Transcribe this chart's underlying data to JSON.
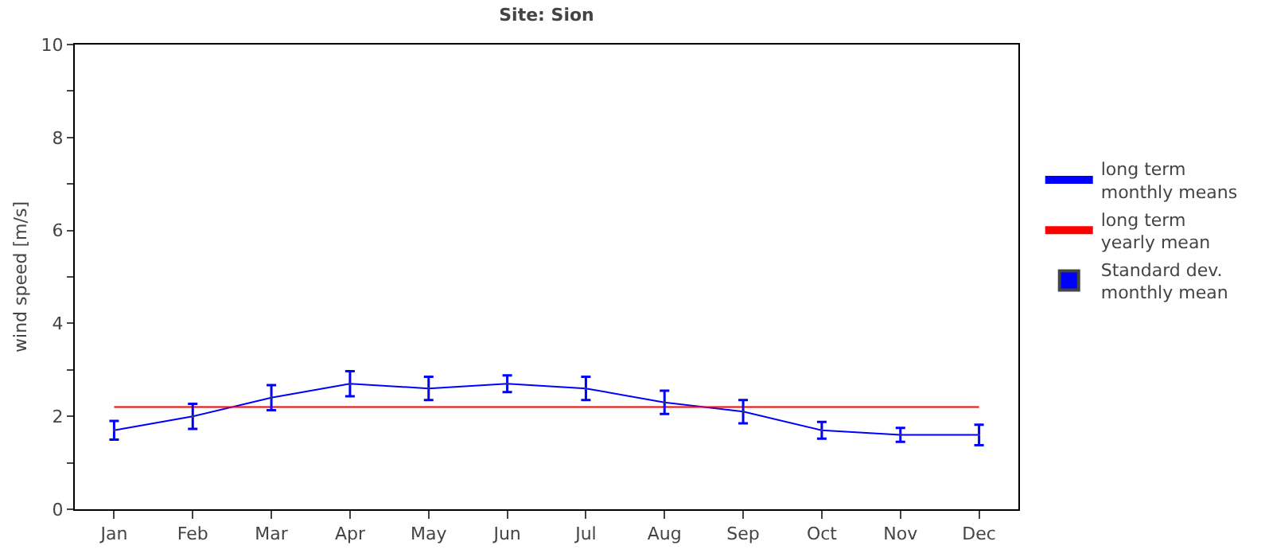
{
  "chart_data": {
    "type": "line",
    "title": "Site: Sion",
    "ylabel": "wind speed [m/s]",
    "categories": [
      "Jan",
      "Feb",
      "Mar",
      "Apr",
      "May",
      "Jun",
      "Jul",
      "Aug",
      "Sep",
      "Oct",
      "Nov",
      "Dec"
    ],
    "series": [
      {
        "name": "long term monthly means",
        "color": "#0000ff",
        "marker": "none",
        "values": [
          1.7,
          2.0,
          2.4,
          2.7,
          2.6,
          2.7,
          2.6,
          2.3,
          2.1,
          1.7,
          1.6,
          1.6
        ]
      },
      {
        "name": "long term yearly mean",
        "color": "#ff0000",
        "marker": "none",
        "values": [
          2.2,
          2.2,
          2.2,
          2.2,
          2.2,
          2.2,
          2.2,
          2.2,
          2.2,
          2.2,
          2.2,
          2.2
        ]
      },
      {
        "name": "Standard dev. monthly mean",
        "type": "scatter",
        "color": "#0000ff",
        "marker": "square",
        "values": [
          1.7,
          2.0,
          2.4,
          2.7,
          2.6,
          2.7,
          2.6,
          2.3,
          2.1,
          1.7,
          1.6,
          1.6
        ],
        "errors": [
          0.2,
          0.27,
          0.27,
          0.27,
          0.25,
          0.18,
          0.25,
          0.25,
          0.25,
          0.18,
          0.15,
          0.22
        ]
      }
    ],
    "ylim": [
      0,
      10
    ],
    "yticks": [
      0,
      {
        "value": 1,
        "label": null
      },
      2,
      {
        "value": 3,
        "label": null
      },
      4,
      {
        "value": 5,
        "label": null
      },
      6,
      {
        "value": 7,
        "label": null
      },
      8,
      {
        "value": 9,
        "label": null
      },
      10
    ],
    "grid": false,
    "legend": "right",
    "line_style": "solid"
  }
}
